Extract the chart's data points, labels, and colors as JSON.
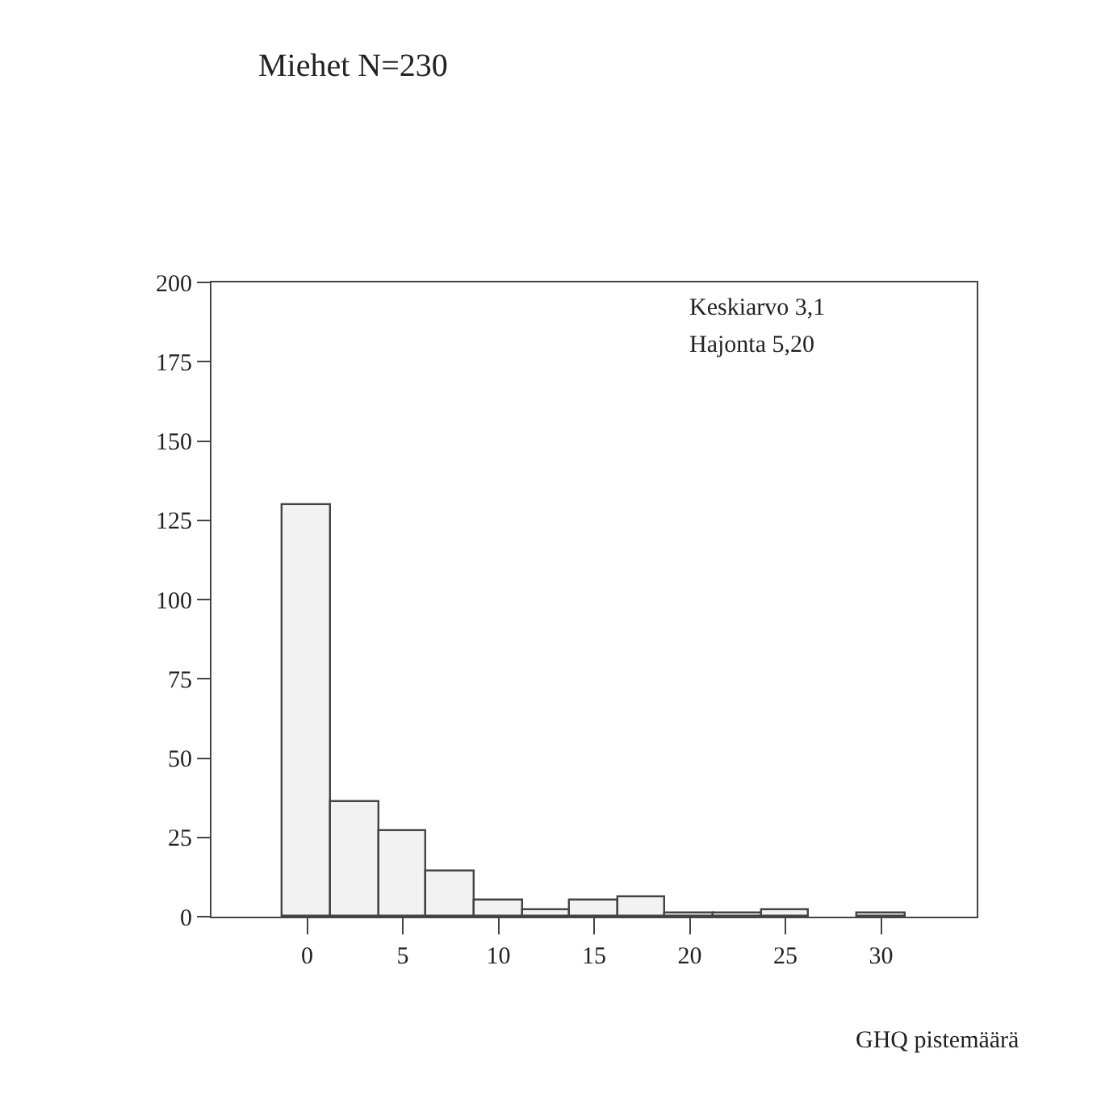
{
  "chart_data": {
    "type": "histogram",
    "title": "Miehet N=230",
    "xlabel": "GHQ pistemäärä",
    "annotations": [
      "Keskiarvo 3,1",
      "Hajonta 5,20"
    ],
    "bins": [
      -1.25,
      1.25,
      3.75,
      6.25,
      8.75,
      11.25,
      13.75,
      16.25,
      18.75,
      21.25,
      23.75,
      26.25,
      28.75,
      31.25
    ],
    "values": [
      130,
      36,
      27,
      14,
      5,
      2,
      5,
      6,
      1,
      1,
      2,
      null,
      1
    ],
    "color": "#f2f2f2",
    "xlim": [
      -5,
      35
    ],
    "xticks": [
      0,
      5,
      10,
      15,
      20,
      25,
      30
    ],
    "ylim": [
      0,
      200
    ],
    "yticks": [
      0,
      25,
      50,
      75,
      100,
      125,
      150,
      175,
      200
    ]
  }
}
